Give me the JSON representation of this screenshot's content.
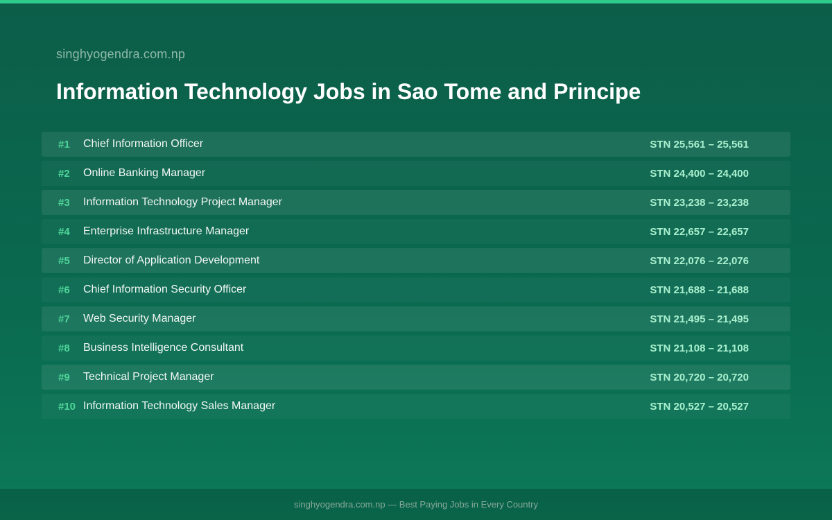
{
  "site_name": "singhyogendra.com.np",
  "title": "Information Technology Jobs in Sao Tome and Principe",
  "jobs": [
    {
      "rank": "#1",
      "title": "Chief Information Officer",
      "salary": "STN 25,561 – 25,561"
    },
    {
      "rank": "#2",
      "title": "Online Banking Manager",
      "salary": "STN 24,400 – 24,400"
    },
    {
      "rank": "#3",
      "title": "Information Technology Project Manager",
      "salary": "STN 23,238 – 23,238"
    },
    {
      "rank": "#4",
      "title": "Enterprise Infrastructure Manager",
      "salary": "STN 22,657 – 22,657"
    },
    {
      "rank": "#5",
      "title": "Director of Application Development",
      "salary": "STN 22,076 – 22,076"
    },
    {
      "rank": "#6",
      "title": "Chief Information Security Officer",
      "salary": "STN 21,688 – 21,688"
    },
    {
      "rank": "#7",
      "title": "Web Security Manager",
      "salary": "STN 21,495 – 21,495"
    },
    {
      "rank": "#8",
      "title": "Business Intelligence Consultant",
      "salary": "STN 21,108 – 21,108"
    },
    {
      "rank": "#9",
      "title": "Technical Project Manager",
      "salary": "STN 20,720 – 20,720"
    },
    {
      "rank": "#10",
      "title": "Information Technology Sales Manager",
      "salary": "STN 20,527 – 20,527"
    }
  ],
  "footer": "singhyogendra.com.np — Best Paying Jobs in Every Country",
  "colors": {
    "accent": "#2fcb8a",
    "rank": "#4fd59a",
    "salary": "#a9f0cf",
    "background": "#0b6a50"
  }
}
